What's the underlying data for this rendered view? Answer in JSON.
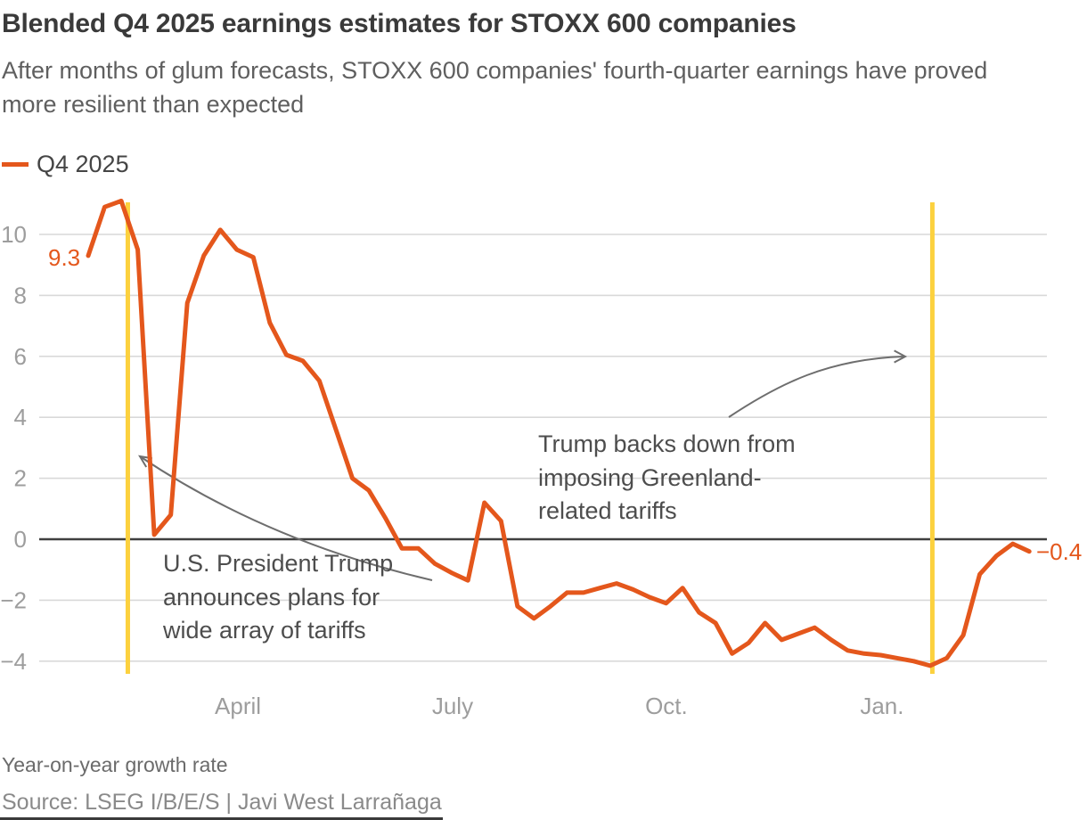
{
  "header": {
    "title": "Blended Q4 2025 earnings estimates for STOXX 600 companies",
    "subtitle_lines": [
      "After months of glum forecasts, STOXX 600 companies' fourth-quarter earnings have proved",
      "more resilient than expected"
    ]
  },
  "legend": {
    "label": "Q4 2025",
    "color": "#e4571c"
  },
  "chart_data": {
    "type": "line",
    "title": "Blended Q4 2025 earnings estimates for STOXX 600 companies",
    "ylabel": "Year-on-year growth rate (%)",
    "ylim": [
      -5,
      11.6
    ],
    "grid": true,
    "zero_line": true,
    "legend_position": "top-left",
    "series": [
      {
        "name": "Q4 2025",
        "color": "#e4571c",
        "values": [
          9.3,
          10.9,
          11.1,
          9.5,
          0.15,
          0.8,
          7.75,
          9.3,
          10.15,
          9.5,
          9.25,
          7.1,
          6.05,
          5.85,
          5.2,
          3.6,
          2.0,
          1.6,
          0.7,
          -0.3,
          -0.3,
          -0.8,
          -1.1,
          -1.35,
          1.2,
          0.6,
          -2.2,
          -2.6,
          -2.2,
          -1.75,
          -1.75,
          -1.6,
          -1.45,
          -1.65,
          -1.9,
          -2.1,
          -1.6,
          -2.4,
          -2.75,
          -3.75,
          -3.4,
          -2.75,
          -3.3,
          -3.1,
          -2.9,
          -3.3,
          -3.65,
          -3.75,
          -3.8,
          -3.9,
          -4.0,
          -4.15,
          -3.9,
          -3.15,
          -1.15,
          -0.55,
          -0.15,
          -0.4
        ]
      }
    ],
    "yticks": [
      {
        "label": "10",
        "value": 10
      },
      {
        "label": "8",
        "value": 8
      },
      {
        "label": "6",
        "value": 6
      },
      {
        "label": "4",
        "value": 4
      },
      {
        "label": "2",
        "value": 2
      },
      {
        "label": "0",
        "value": 0
      },
      {
        "label": "−2",
        "value": -2
      },
      {
        "label": "−4",
        "value": -4
      }
    ],
    "xticks": [
      {
        "label": "April",
        "pos": 9.07
      },
      {
        "label": "July",
        "pos": 22.07
      },
      {
        "label": "Oct.",
        "pos": 35.02
      },
      {
        "label": "Jan.",
        "pos": 48.08
      }
    ],
    "event_line_color": "#fcd13e",
    "event_lines": [
      {
        "pos": 2.4
      },
      {
        "pos": 51.13
      }
    ],
    "point_labels": {
      "start": "9.3",
      "end": "−0.4"
    },
    "annotations": [
      {
        "lines": [
          "U.S. President Trump",
          "announces plans for",
          "wide array of tariffs"
        ]
      },
      {
        "lines": [
          "Trump backs down from",
          "imposing Greenland-",
          "related tariffs"
        ]
      }
    ]
  },
  "footer": {
    "note": "Year-on-year growth rate",
    "source": "Source: LSEG I/B/E/S | Javi West Larrañaga"
  }
}
